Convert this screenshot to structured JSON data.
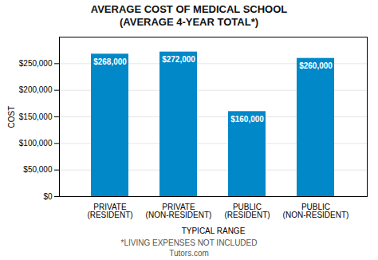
{
  "chart_data": {
    "type": "bar",
    "title": "AVERAGE COST OF MEDICAL SCHOOL",
    "subtitle": "(AVERAGE 4-YEAR TOTAL*)",
    "xlabel": "TYPICAL RANGE",
    "ylabel": "COST",
    "annotations": [
      "*LIVING EXPENSES NOT INCLUDED",
      "Tutors.com"
    ],
    "categories": [
      "PRIVATE\n(RESIDENT)",
      "PRIVATE\n(NON-RESIDENT)",
      "PUBLIC\n(RESIDENT)",
      "PUBLIC\n(NON-RESIDENT)"
    ],
    "values": [
      268000,
      272000,
      160000,
      260000
    ],
    "value_labels": [
      "$268,000",
      "$272,000",
      "$160,000",
      "$260,000"
    ],
    "data_labels": true,
    "color": "#0088c8",
    "ylim": [
      0,
      300000
    ],
    "yticks": [
      {
        "value": 0,
        "label": "$0"
      },
      {
        "value": 50000,
        "label": "$50,000"
      },
      {
        "value": 100000,
        "label": "$100,000"
      },
      {
        "value": 150000,
        "label": "$150,000"
      },
      {
        "value": 200000,
        "label": "$200,000"
      },
      {
        "value": 250000,
        "label": "$250,000"
      }
    ],
    "grid": true
  }
}
